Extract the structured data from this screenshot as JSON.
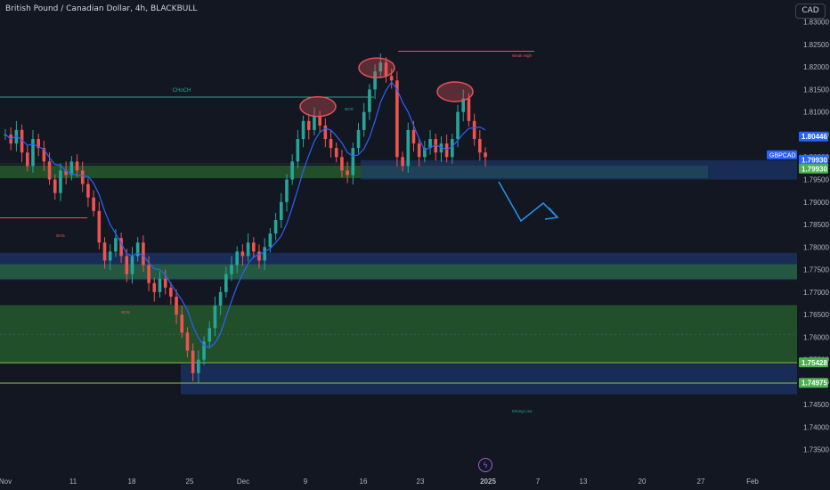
{
  "header": {
    "symbol_title": "British Pound / Canadian Dollar, 4h, BLACKBULL",
    "currency_button": "CAD"
  },
  "chart_data": {
    "type": "candlestick",
    "symbol": "GBPCAD",
    "ylim": [
      1.73,
      1.8325
    ],
    "y_ticks": [
      "1.83000",
      "1.82500",
      "1.82000",
      "1.81500",
      "1.81000",
      "1.80500",
      "1.80000",
      "1.79500",
      "1.79000",
      "1.78500",
      "1.78000",
      "1.77500",
      "1.77000",
      "1.76500",
      "1.76000",
      "1.75500",
      "1.75000",
      "1.74500",
      "1.74000",
      "1.73500"
    ],
    "x_ticks": [
      "Nov",
      "11",
      "18",
      "25",
      "Dec",
      "9",
      "16",
      "23",
      "2025",
      "7",
      "13",
      "20",
      "27",
      "Feb"
    ],
    "price_labels": [
      {
        "text": "1.80446",
        "value": 1.80446,
        "bg": "#2962ff",
        "fg": "#ffffff"
      },
      {
        "text": "1.79930",
        "value": 1.7993,
        "bg": "#2962ff",
        "fg": "#ffffff"
      },
      {
        "text": "1.79930",
        "value": 1.7993,
        "bg": "#4caf50",
        "fg": "#ffffff"
      },
      {
        "text": "1.75428",
        "value": 1.75428,
        "bg": "#4caf50",
        "fg": "#ffffff"
      },
      {
        "text": "1.74975",
        "value": 1.74975,
        "bg": "#4caf50",
        "fg": "#ffffff"
      }
    ],
    "symbol_tag": "GBPCAD",
    "annotations": {
      "choch": "CHoCH",
      "bos": "BOS",
      "weak_high": "Weak High",
      "strong_low": "Strong Low"
    },
    "key_levels": [
      1.8015,
      1.8133,
      1.7865,
      1.7493,
      1.7498,
      1.7543,
      1.8235
    ],
    "zones": [
      {
        "kind": "demand",
        "from": 1.7953,
        "to": 1.7981,
        "color": "#2e7d32"
      },
      {
        "kind": "supply",
        "from": 1.795,
        "to": 1.7993,
        "color": "#1e3a78"
      },
      {
        "kind": "supply",
        "from": 1.7727,
        "to": 1.7787,
        "color": "#1e3a78"
      },
      {
        "kind": "demand",
        "from": 1.7729,
        "to": 1.7762,
        "color": "#2e7d32"
      },
      {
        "kind": "demand",
        "from": 1.7543,
        "to": 1.7671,
        "color": "#2e7d32"
      },
      {
        "kind": "supply",
        "from": 1.7473,
        "to": 1.754,
        "color": "#1e3a78"
      }
    ],
    "colors": {
      "up": "#26a69a",
      "down": "#ef5350",
      "ma": "#2962ff",
      "projection": "#2196f3",
      "circle": "#e0525a"
    }
  },
  "footer": {
    "icon": "lightning-icon"
  }
}
